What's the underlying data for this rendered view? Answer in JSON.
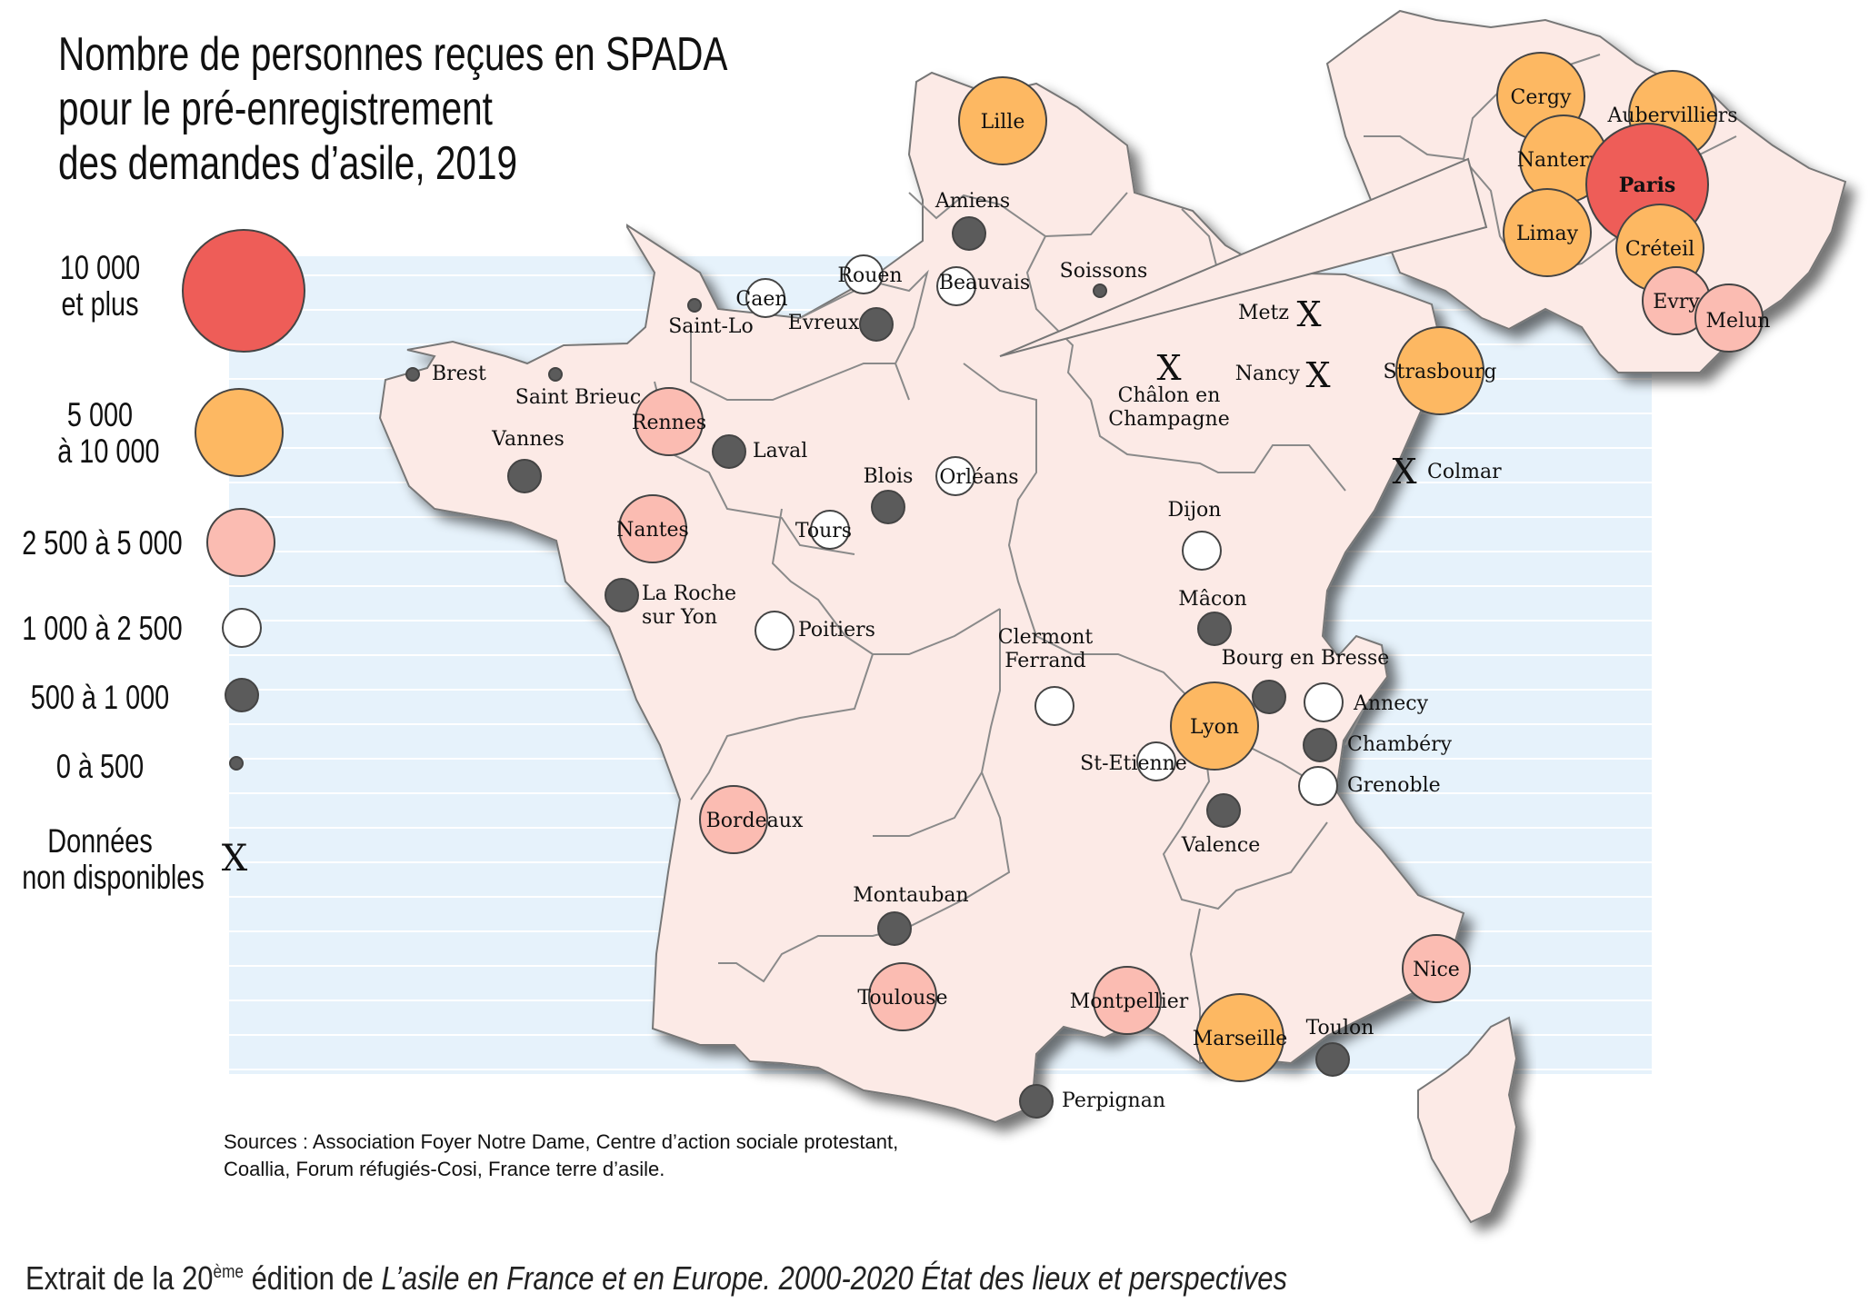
{
  "title": {
    "line1": "Nombre de personnes reçues en SPADA",
    "line2": "pour le pré-enregistrement",
    "line3": "des demandes d’asile, 2019"
  },
  "legend": [
    {
      "id": "c1",
      "line1": "10 000",
      "line2": "et plus",
      "color": "#ee5d58"
    },
    {
      "id": "c2",
      "line1": "5 000",
      "line2": "à 10 000",
      "color": "#fdb862"
    },
    {
      "id": "c3",
      "line1": "2 500 à 5 000",
      "line2": "",
      "color": "#fbbcb2"
    },
    {
      "id": "c4",
      "line1": "1 000 à 2 500",
      "line2": "",
      "color": "#ffffff"
    },
    {
      "id": "c5",
      "line1": "500 à 1 000",
      "line2": "",
      "color": "#5b5b5b"
    },
    {
      "id": "c6",
      "line1": "0 à 500",
      "line2": "",
      "color": "#5b5b5b"
    },
    {
      "id": "x",
      "line1": "Données",
      "line2": "non disponibles",
      "symbol": "X"
    }
  ],
  "cities": [
    {
      "name": "Lille",
      "cls": "c2"
    },
    {
      "name": "Amiens",
      "cls": "c5"
    },
    {
      "name": "Rouen",
      "cls": "c4"
    },
    {
      "name": "Beauvais",
      "cls": "c4"
    },
    {
      "name": "Soissons",
      "cls": "c6"
    },
    {
      "name": "Caen",
      "cls": "c4"
    },
    {
      "name": "Saint-Lo",
      "cls": "c6"
    },
    {
      "name": "Evreux",
      "cls": "c5"
    },
    {
      "name": "Brest",
      "cls": "c6"
    },
    {
      "name": "Saint Brieuc",
      "cls": "c6"
    },
    {
      "name": "Rennes",
      "cls": "c3"
    },
    {
      "name": "Vannes",
      "cls": "c5"
    },
    {
      "name": "Laval",
      "cls": "c5"
    },
    {
      "name": "Nantes",
      "cls": "c3"
    },
    {
      "name": "La Roche sur Yon",
      "cls": "c5"
    },
    {
      "name": "Blois",
      "cls": "c5"
    },
    {
      "name": "Orléans",
      "cls": "c4"
    },
    {
      "name": "Tours",
      "cls": "c4"
    },
    {
      "name": "Poitiers",
      "cls": "c4"
    },
    {
      "name": "Metz",
      "cls": "x"
    },
    {
      "name": "Nancy",
      "cls": "x"
    },
    {
      "name": "Châlon en Champagne",
      "cls": "x"
    },
    {
      "name": "Strasbourg",
      "cls": "c2"
    },
    {
      "name": "Colmar",
      "cls": "x"
    },
    {
      "name": "Dijon",
      "cls": "c4"
    },
    {
      "name": "Mâcon",
      "cls": "c5"
    },
    {
      "name": "Bourg en Bresse",
      "cls": "c5"
    },
    {
      "name": "Clermont Ferrand",
      "cls": "c4"
    },
    {
      "name": "Lyon",
      "cls": "c2"
    },
    {
      "name": "St-Etienne",
      "cls": "c4"
    },
    {
      "name": "Annecy",
      "cls": "c4"
    },
    {
      "name": "Chambéry",
      "cls": "c5"
    },
    {
      "name": "Grenoble",
      "cls": "c4"
    },
    {
      "name": "Valence",
      "cls": "c5"
    },
    {
      "name": "Bordeaux",
      "cls": "c3"
    },
    {
      "name": "Montauban",
      "cls": "c5"
    },
    {
      "name": "Toulouse",
      "cls": "c3"
    },
    {
      "name": "Montpellier",
      "cls": "c3"
    },
    {
      "name": "Marseille",
      "cls": "c2"
    },
    {
      "name": "Toulon",
      "cls": "c5"
    },
    {
      "name": "Nice",
      "cls": "c3"
    },
    {
      "name": "Perpignan",
      "cls": "c5"
    }
  ],
  "inset_cities": [
    {
      "name": "Cergy",
      "cls": "c2"
    },
    {
      "name": "Aubervilliers",
      "cls": "c2"
    },
    {
      "name": "Nanterre",
      "cls": "c2"
    },
    {
      "name": "Paris",
      "cls": "c1"
    },
    {
      "name": "Limay",
      "cls": "c2"
    },
    {
      "name": "Créteil",
      "cls": "c2"
    },
    {
      "name": "Evry",
      "cls": "c3"
    },
    {
      "name": "Melun",
      "cls": "c3"
    }
  ],
  "sources": {
    "line1": "Sources : Association Foyer Notre Dame, Centre d’action sociale protestant,",
    "line2": "Coallia, Forum réfugiés-Cosi, France terre d’asile."
  },
  "footer": {
    "prefix": "Extrait de la 20",
    "sup": "ème",
    "middle": " édition de ",
    "italic": "L’asile en France et en Europe. 2000-2020 État des lieux et perspectives"
  },
  "colors": {
    "land": "#fceae6",
    "border": "#7b7b7b",
    "stripe_bg": "#e6f2fb",
    "stripe_line": "#ffffff",
    "circle_stroke": "#444444"
  }
}
